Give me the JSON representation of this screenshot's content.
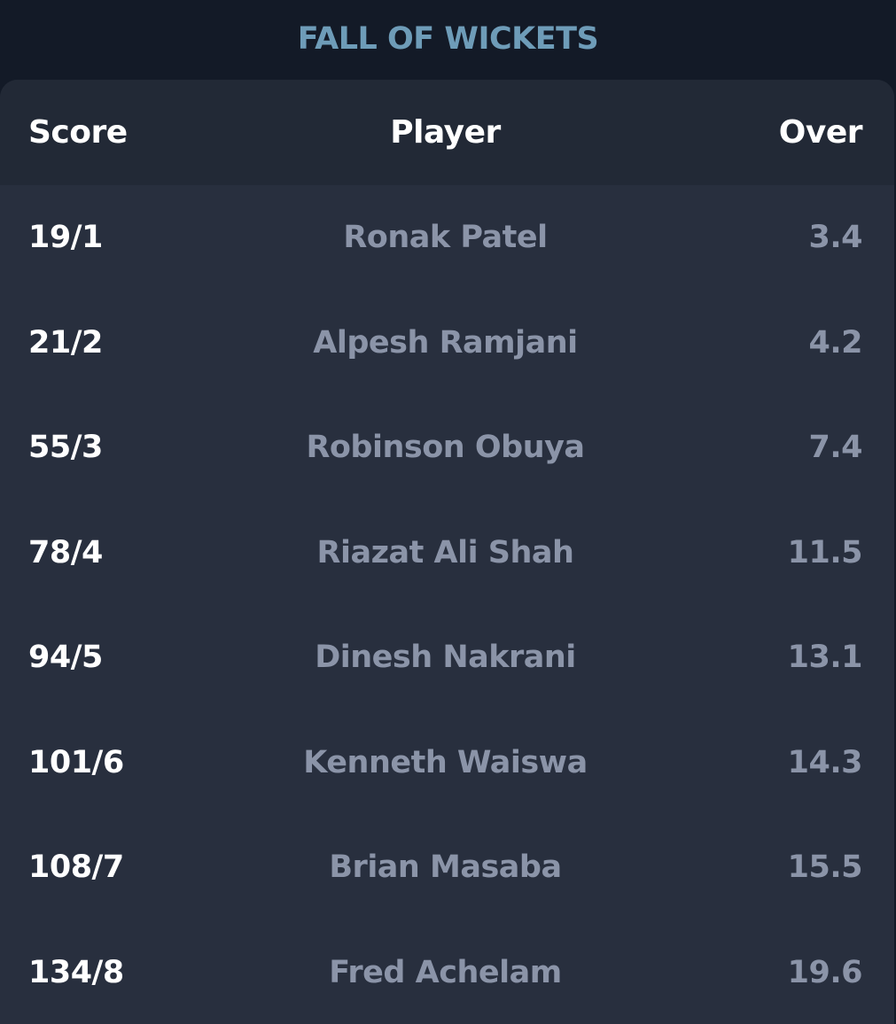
{
  "section_title": "FALL OF WICKETS",
  "columns": {
    "score": "Score",
    "player": "Player",
    "over": "Over"
  },
  "wickets": [
    {
      "score": "19/1",
      "player": "Ronak Patel",
      "over": "3.4"
    },
    {
      "score": "21/2",
      "player": "Alpesh Ramjani",
      "over": "4.2"
    },
    {
      "score": "55/3",
      "player": "Robinson Obuya",
      "over": "7.4"
    },
    {
      "score": "78/4",
      "player": "Riazat Ali Shah",
      "over": "11.5"
    },
    {
      "score": "94/5",
      "player": "Dinesh Nakrani",
      "over": "13.1"
    },
    {
      "score": "101/6",
      "player": "Kenneth Waiswa",
      "over": "14.3"
    },
    {
      "score": "108/7",
      "player": "Brian Masaba",
      "over": "15.5"
    },
    {
      "score": "134/8",
      "player": "Fred Achelam",
      "over": "19.6"
    }
  ],
  "colors": {
    "background": "#131a27",
    "card": "#282f3e",
    "header": "#222936",
    "title_accent": "#6e9cb8",
    "muted_text": "#8b94a8"
  }
}
